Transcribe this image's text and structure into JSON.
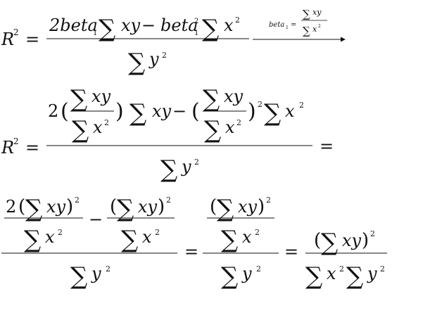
{
  "equations": {
    "line1": {
      "lhs": "R",
      "lhs_sup": "2",
      "eq": "=",
      "num_a": "2beta",
      "num_a_sub": "1",
      "sum": "∑",
      "xy": "xy",
      "minus": "−",
      "num_b": "beta",
      "num_b_sup": "2",
      "num_b_sub": "1",
      "x": "x",
      "sup2": "2",
      "den_y": "y",
      "arrow_label": "beta",
      "arrow_label_sub": "1",
      "arrow_eq": "="
    },
    "line2": {
      "lhs": "R",
      "lhs_sup": "2",
      "eq": "=",
      "coef": "2",
      "lparen": "(",
      "rparen": ")",
      "sum": "∑",
      "xy": "xy",
      "x": "x",
      "minus": "−",
      "sup2": "2",
      "y": "y",
      "trail_eq": "="
    },
    "line3": {
      "coef": "2",
      "lparen": "(",
      "rparen": ")",
      "sum": "∑",
      "xy": "xy",
      "x": "x",
      "y": "y",
      "minus": "−",
      "eq": "=",
      "sup2": "2"
    }
  }
}
